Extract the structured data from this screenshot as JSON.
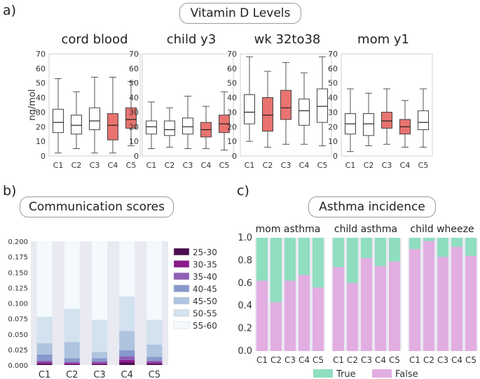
{
  "panel_labels": {
    "a": "a)",
    "b": "b)",
    "c": "c)"
  },
  "titles": {
    "a": "Vitamin D Levels",
    "b": "Communication scores",
    "c": "Asthma incidence"
  },
  "colors": {
    "box_white": "#ffffff",
    "box_red": "#e8736f",
    "panel_bg": "#e9e9f2",
    "true_color": "#8fdec0",
    "false_color": "#e2aee2"
  },
  "chart_data": [
    {
      "id": "vitd",
      "type": "box",
      "ylabel": "ng/mol",
      "ylim": [
        0,
        70
      ],
      "yticks": [
        "0",
        "10",
        "20",
        "30",
        "40",
        "50",
        "60",
        "70"
      ],
      "categories": [
        "C1",
        "C2",
        "C3",
        "C4",
        "C5"
      ],
      "panels": [
        {
          "title": "cord blood",
          "boxes": [
            {
              "min": 2,
              "q1": 16,
              "median": 23,
              "q3": 32,
              "max": 53,
              "highlight": false
            },
            {
              "min": 5,
              "q1": 15,
              "median": 21,
              "q3": 28,
              "max": 44,
              "highlight": false
            },
            {
              "min": 2,
              "q1": 18,
              "median": 24,
              "q3": 33,
              "max": 54,
              "highlight": false
            },
            {
              "min": 2,
              "q1": 11,
              "median": 21,
              "q3": 29,
              "max": 54,
              "highlight": true
            },
            {
              "min": 7,
              "q1": 19,
              "median": 25,
              "q3": 33,
              "max": 51,
              "highlight": true
            }
          ]
        },
        {
          "title": "child y3",
          "boxes": [
            {
              "min": 5,
              "q1": 15,
              "median": 20,
              "q3": 24,
              "max": 37,
              "highlight": false
            },
            {
              "min": 6,
              "q1": 14,
              "median": 18,
              "q3": 24,
              "max": 33,
              "highlight": false
            },
            {
              "min": 5,
              "q1": 15,
              "median": 20,
              "q3": 26,
              "max": 41,
              "highlight": false
            },
            {
              "min": 5,
              "q1": 13,
              "median": 18,
              "q3": 23,
              "max": 34,
              "highlight": true
            },
            {
              "min": 4,
              "q1": 16,
              "median": 22,
              "q3": 28,
              "max": 44,
              "highlight": true
            }
          ]
        },
        {
          "title": "wk 32to38",
          "boxes": [
            {
              "min": 10,
              "q1": 22,
              "median": 30,
              "q3": 42,
              "max": 68,
              "highlight": false
            },
            {
              "min": 6,
              "q1": 17,
              "median": 28,
              "q3": 40,
              "max": 58,
              "highlight": true
            },
            {
              "min": 8,
              "q1": 25,
              "median": 33,
              "q3": 45,
              "max": 64,
              "highlight": true
            },
            {
              "min": 8,
              "q1": 21,
              "median": 31,
              "q3": 39,
              "max": 57,
              "highlight": false
            },
            {
              "min": 7,
              "q1": 23,
              "median": 34,
              "q3": 46,
              "max": 68,
              "highlight": false
            }
          ]
        },
        {
          "title": "mom y1",
          "boxes": [
            {
              "min": 3,
              "q1": 15,
              "median": 22,
              "q3": 29,
              "max": 46,
              "highlight": false
            },
            {
              "min": 7,
              "q1": 14,
              "median": 22,
              "q3": 29,
              "max": 43,
              "highlight": false
            },
            {
              "min": 8,
              "q1": 19,
              "median": 24,
              "q3": 30,
              "max": 46,
              "highlight": true
            },
            {
              "min": 6,
              "q1": 15,
              "median": 20,
              "q3": 25,
              "max": 38,
              "highlight": true
            },
            {
              "min": 6,
              "q1": 18,
              "median": 23,
              "q3": 31,
              "max": 46,
              "highlight": false
            }
          ]
        }
      ]
    },
    {
      "id": "comm",
      "type": "stacked_bar",
      "ylim": [
        0,
        0.2
      ],
      "yticks": [
        "0.000",
        "0.025",
        "0.050",
        "0.075",
        "0.100",
        "0.125",
        "0.150",
        "0.175",
        "0.200"
      ],
      "categories": [
        "C1",
        "C2",
        "C3",
        "C4",
        "C5"
      ],
      "series": [
        {
          "name": "25-30",
          "color": "#4a0d4e",
          "values": [
            0.002,
            0.001,
            0.001,
            0.004,
            0.002
          ]
        },
        {
          "name": "30-35",
          "color": "#8b1a8b",
          "values": [
            0.002,
            0.002,
            0.002,
            0.004,
            0.002
          ]
        },
        {
          "name": "35-40",
          "color": "#8f5fb5",
          "values": [
            0.003,
            0.002,
            0.003,
            0.006,
            0.003
          ]
        },
        {
          "name": "40-45",
          "color": "#8898cc",
          "values": [
            0.01,
            0.006,
            0.005,
            0.01,
            0.006
          ]
        },
        {
          "name": "45-50",
          "color": "#aec4df",
          "values": [
            0.018,
            0.026,
            0.01,
            0.031,
            0.02
          ]
        },
        {
          "name": "50-55",
          "color": "#d3e2ef",
          "values": [
            0.043,
            0.054,
            0.052,
            0.056,
            0.04
          ]
        },
        {
          "name": "55-60",
          "color": "#f3f9fc",
          "values": [
            0.122,
            0.109,
            0.127,
            0.089,
            0.127
          ]
        }
      ]
    },
    {
      "id": "asthma",
      "type": "stacked_bar",
      "ylim": [
        0,
        1.0
      ],
      "yticks": [
        "0.0",
        "0.2",
        "0.4",
        "0.6",
        "0.8",
        "1.0"
      ],
      "categories": [
        "C1",
        "C2",
        "C3",
        "C4",
        "C5"
      ],
      "legend": [
        "True",
        "False"
      ],
      "panels": [
        {
          "title": "mom asthma",
          "false": [
            0.62,
            0.43,
            0.62,
            0.67,
            0.56
          ]
        },
        {
          "title": "child asthma",
          "false": [
            0.74,
            0.6,
            0.82,
            0.75,
            0.79
          ]
        },
        {
          "title": "child wheeze",
          "false": [
            0.9,
            0.97,
            0.83,
            0.92,
            0.84
          ]
        }
      ]
    }
  ]
}
